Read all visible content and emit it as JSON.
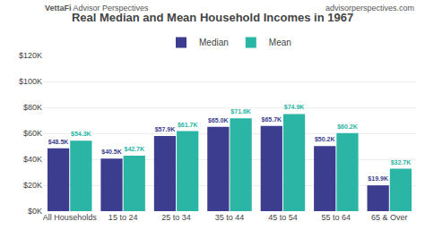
{
  "chart_data": {
    "type": "bar",
    "title": "Real Median and Mean Household Incomes in 1967",
    "annotations": [
      "VettaFi",
      "Advisor Perspectives",
      "advisorperspectives.com"
    ],
    "categories": [
      "All Households",
      "15 to 24",
      "25 to 34",
      "35 to 44",
      "45 to 54",
      "55 to 64",
      "65 & Over"
    ],
    "series": [
      {
        "name": "Median",
        "color": "#3d3d8f",
        "values": [
          48500,
          40500,
          57900,
          65000,
          65700,
          50200,
          19900
        ],
        "value_labels": [
          "$48.5K",
          "$40.5K",
          "$57.9K",
          "$65.0K",
          "$65.7K",
          "$50.2K",
          "$19.9K"
        ]
      },
      {
        "name": "Mean",
        "color": "#2ab5a5",
        "values": [
          54300,
          42700,
          61700,
          71600,
          74900,
          60200,
          32700
        ],
        "value_labels": [
          "$54.3K",
          "$42.7K",
          "$61.7K",
          "$71.6K",
          "$74.9K",
          "$60.2K",
          "$32.7K"
        ]
      }
    ],
    "ylim": [
      0,
      120000
    ],
    "yticks": [
      {
        "value": 0,
        "label": "$0K"
      },
      {
        "value": 20000,
        "label": "$20K"
      },
      {
        "value": 40000,
        "label": "$40K"
      },
      {
        "value": 60000,
        "label": "$60K"
      },
      {
        "value": 80000,
        "label": "$80K"
      },
      {
        "value": 100000,
        "label": "$100K"
      },
      {
        "value": 120000,
        "label": "$120K"
      }
    ],
    "grid": true,
    "legend": "top",
    "data_labels": true
  }
}
